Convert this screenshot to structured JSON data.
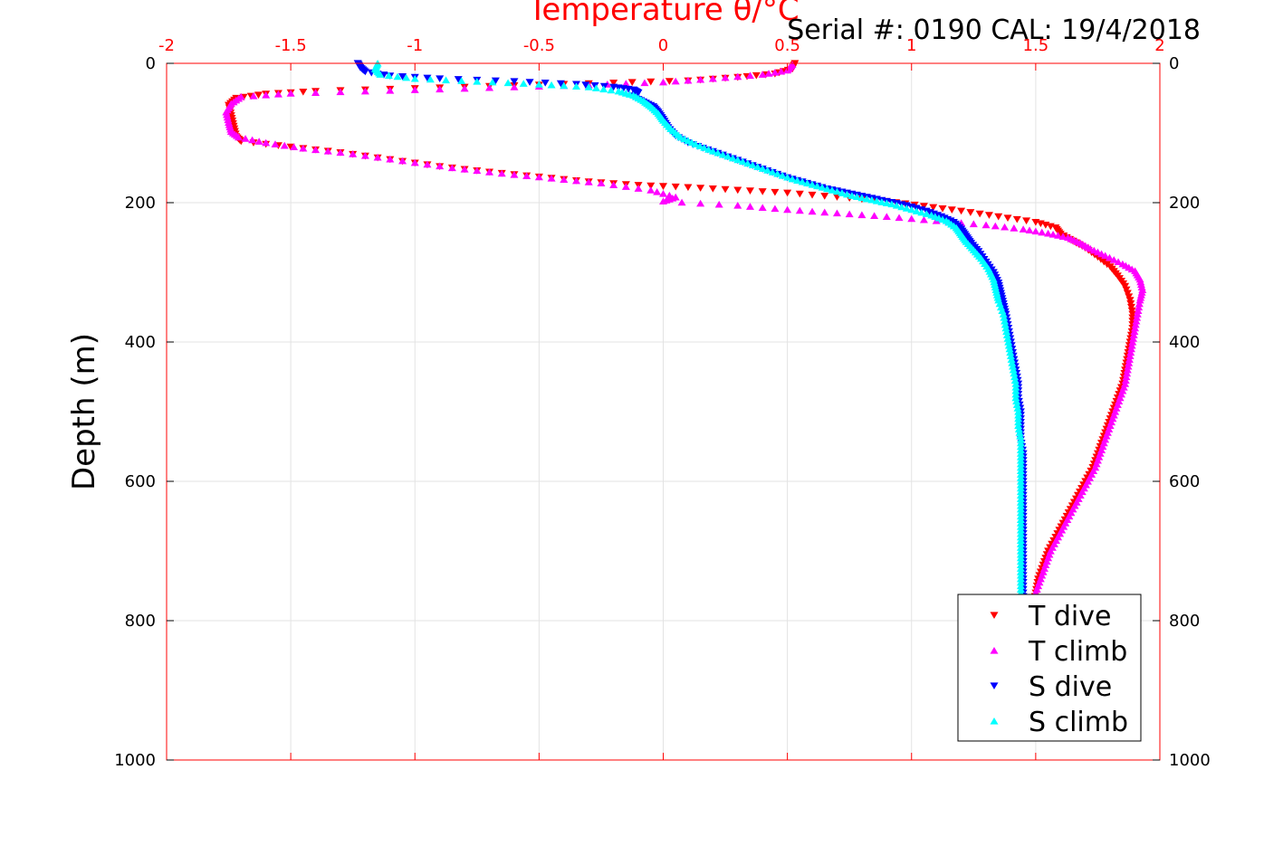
{
  "chart_data": {
    "type": "scatter",
    "title": "",
    "header_text": "Serial #: 0190  CAL: 19/4/2018",
    "xlabel": "Temperature θ/°C",
    "ylabel": "Depth (m)",
    "xlim": [
      -2,
      2
    ],
    "ylim": [
      0,
      1000
    ],
    "y_reversed": true,
    "x_axis_position": "top",
    "x_axis_color": "#ff0000",
    "x_ticks": [
      -2,
      -1.5,
      -1,
      -0.5,
      0,
      0.5,
      1,
      1.5,
      2
    ],
    "x_tick_labels": [
      "-2",
      "-1.5",
      "-1",
      "-0.5",
      "0",
      "0.5",
      "1",
      "1.5",
      "2"
    ],
    "y_ticks": [
      0,
      200,
      400,
      600,
      800,
      1000
    ],
    "y_tick_labels": [
      "0",
      "200",
      "400",
      "600",
      "800",
      "1000"
    ],
    "grid": true,
    "legend_position": "bottom-right",
    "series": [
      {
        "name": "T dive",
        "color": "#ff0000",
        "marker": "triangle-down",
        "points": [
          [
            0.53,
            0
          ],
          [
            0.52,
            8
          ],
          [
            0.45,
            15
          ],
          [
            0.3,
            20
          ],
          [
            0.1,
            25
          ],
          [
            -0.2,
            28
          ],
          [
            -0.6,
            32
          ],
          [
            -1.0,
            36
          ],
          [
            -1.4,
            40
          ],
          [
            -1.6,
            44
          ],
          [
            -1.72,
            50
          ],
          [
            -1.75,
            60
          ],
          [
            -1.74,
            75
          ],
          [
            -1.73,
            90
          ],
          [
            -1.72,
            105
          ],
          [
            -1.7,
            112
          ],
          [
            -1.5,
            120
          ],
          [
            -1.3,
            128
          ],
          [
            -1.1,
            138
          ],
          [
            -0.9,
            148
          ],
          [
            -0.7,
            156
          ],
          [
            -0.5,
            163
          ],
          [
            -0.3,
            170
          ],
          [
            -0.1,
            175
          ],
          [
            0.1,
            178
          ],
          [
            0.3,
            182
          ],
          [
            0.5,
            186
          ],
          [
            0.7,
            192
          ],
          [
            0.9,
            198
          ],
          [
            1.05,
            205
          ],
          [
            1.2,
            212
          ],
          [
            1.35,
            220
          ],
          [
            1.5,
            228
          ],
          [
            1.58,
            236
          ],
          [
            1.6,
            245
          ],
          [
            1.65,
            255
          ],
          [
            1.7,
            265
          ],
          [
            1.75,
            278
          ],
          [
            1.8,
            292
          ],
          [
            1.83,
            305
          ],
          [
            1.86,
            320
          ],
          [
            1.88,
            340
          ],
          [
            1.89,
            360
          ],
          [
            1.89,
            380
          ],
          [
            1.88,
            400
          ],
          [
            1.87,
            420
          ],
          [
            1.86,
            440
          ],
          [
            1.85,
            460
          ],
          [
            1.83,
            480
          ],
          [
            1.81,
            500
          ],
          [
            1.79,
            520
          ],
          [
            1.77,
            540
          ],
          [
            1.75,
            560
          ],
          [
            1.73,
            580
          ],
          [
            1.7,
            600
          ],
          [
            1.67,
            620
          ],
          [
            1.64,
            640
          ],
          [
            1.61,
            660
          ],
          [
            1.58,
            680
          ],
          [
            1.55,
            700
          ],
          [
            1.53,
            720
          ],
          [
            1.51,
            740
          ],
          [
            1.5,
            760
          ],
          [
            1.49,
            780
          ]
        ]
      },
      {
        "name": "T climb",
        "color": "#ff00ff",
        "marker": "triangle-up",
        "points": [
          [
            0.52,
            2
          ],
          [
            0.5,
            10
          ],
          [
            0.4,
            16
          ],
          [
            0.2,
            22
          ],
          [
            0.0,
            27
          ],
          [
            -0.3,
            31
          ],
          [
            -0.7,
            35
          ],
          [
            -1.1,
            39
          ],
          [
            -1.5,
            43
          ],
          [
            -1.7,
            48
          ],
          [
            -1.74,
            58
          ],
          [
            -1.76,
            70
          ],
          [
            -1.75,
            85
          ],
          [
            -1.74,
            98
          ],
          [
            -1.71,
            106
          ],
          [
            -1.6,
            114
          ],
          [
            -1.45,
            122
          ],
          [
            -1.25,
            130
          ],
          [
            -1.05,
            140
          ],
          [
            -0.85,
            150
          ],
          [
            -0.65,
            158
          ],
          [
            -0.45,
            165
          ],
          [
            -0.25,
            172
          ],
          [
            -0.05,
            182
          ],
          [
            0.05,
            192
          ],
          [
            0.0,
            198
          ],
          [
            0.3,
            204
          ],
          [
            0.5,
            210
          ],
          [
            0.7,
            215
          ],
          [
            0.9,
            220
          ],
          [
            1.1,
            226
          ],
          [
            1.3,
            232
          ],
          [
            1.45,
            238
          ],
          [
            1.55,
            244
          ],
          [
            1.63,
            250
          ],
          [
            1.68,
            258
          ],
          [
            1.72,
            266
          ],
          [
            1.78,
            276
          ],
          [
            1.85,
            288
          ],
          [
            1.9,
            298
          ],
          [
            1.92,
            310
          ],
          [
            1.93,
            325
          ],
          [
            1.92,
            340
          ],
          [
            1.91,
            360
          ],
          [
            1.9,
            380
          ],
          [
            1.89,
            400
          ],
          [
            1.88,
            420
          ],
          [
            1.87,
            440
          ],
          [
            1.86,
            460
          ],
          [
            1.84,
            480
          ],
          [
            1.82,
            500
          ],
          [
            1.8,
            520
          ],
          [
            1.78,
            540
          ],
          [
            1.76,
            560
          ],
          [
            1.74,
            580
          ],
          [
            1.71,
            600
          ],
          [
            1.68,
            620
          ],
          [
            1.65,
            640
          ],
          [
            1.62,
            660
          ],
          [
            1.59,
            680
          ],
          [
            1.56,
            700
          ],
          [
            1.54,
            720
          ],
          [
            1.52,
            740
          ],
          [
            1.5,
            760
          ],
          [
            1.5,
            780
          ]
        ]
      },
      {
        "name": "S dive",
        "color": "#0000ff",
        "marker": "triangle-down",
        "points": [
          [
            -1.23,
            0
          ],
          [
            -1.22,
            6
          ],
          [
            -1.2,
            12
          ],
          [
            -1.1,
            18
          ],
          [
            -0.9,
            22
          ],
          [
            -0.6,
            26
          ],
          [
            -0.35,
            30
          ],
          [
            -0.2,
            34
          ],
          [
            -0.12,
            38
          ],
          [
            -0.1,
            42
          ],
          [
            -0.12,
            48
          ],
          [
            -0.08,
            55
          ],
          [
            -0.04,
            62
          ],
          [
            -0.02,
            70
          ],
          [
            0.0,
            80
          ],
          [
            0.02,
            92
          ],
          [
            0.05,
            104
          ],
          [
            0.1,
            114
          ],
          [
            0.18,
            124
          ],
          [
            0.26,
            134
          ],
          [
            0.34,
            144
          ],
          [
            0.42,
            154
          ],
          [
            0.5,
            164
          ],
          [
            0.58,
            172
          ],
          [
            0.66,
            180
          ],
          [
            0.74,
            186
          ],
          [
            0.82,
            192
          ],
          [
            0.9,
            198
          ],
          [
            0.98,
            204
          ],
          [
            1.06,
            212
          ],
          [
            1.12,
            220
          ],
          [
            1.17,
            228
          ],
          [
            1.2,
            238
          ],
          [
            1.22,
            248
          ],
          [
            1.24,
            258
          ],
          [
            1.27,
            270
          ],
          [
            1.3,
            285
          ],
          [
            1.33,
            300
          ],
          [
            1.35,
            315
          ],
          [
            1.36,
            330
          ],
          [
            1.37,
            345
          ],
          [
            1.38,
            360
          ],
          [
            1.39,
            380
          ],
          [
            1.4,
            400
          ],
          [
            1.41,
            420
          ],
          [
            1.42,
            440
          ],
          [
            1.43,
            460
          ],
          [
            1.43,
            480
          ],
          [
            1.44,
            500
          ],
          [
            1.44,
            520
          ],
          [
            1.44,
            540
          ],
          [
            1.45,
            560
          ],
          [
            1.45,
            580
          ],
          [
            1.45,
            600
          ],
          [
            1.45,
            620
          ],
          [
            1.45,
            640
          ],
          [
            1.45,
            660
          ],
          [
            1.45,
            680
          ],
          [
            1.45,
            700
          ],
          [
            1.45,
            720
          ],
          [
            1.45,
            740
          ],
          [
            1.45,
            760
          ],
          [
            1.45,
            780
          ]
        ]
      },
      {
        "name": "S climb",
        "color": "#00ffff",
        "marker": "triangle-up",
        "points": [
          [
            -1.15,
            0
          ],
          [
            -1.16,
            8
          ],
          [
            -1.14,
            16
          ],
          [
            -1.0,
            22
          ],
          [
            -0.75,
            26
          ],
          [
            -0.5,
            30
          ],
          [
            -0.3,
            34
          ],
          [
            -0.18,
            40
          ],
          [
            -0.12,
            46
          ],
          [
            -0.08,
            54
          ],
          [
            -0.05,
            62
          ],
          [
            -0.02,
            72
          ],
          [
            0.0,
            82
          ],
          [
            0.03,
            94
          ],
          [
            0.07,
            106
          ],
          [
            0.13,
            116
          ],
          [
            0.2,
            126
          ],
          [
            0.28,
            136
          ],
          [
            0.36,
            146
          ],
          [
            0.44,
            156
          ],
          [
            0.52,
            166
          ],
          [
            0.6,
            174
          ],
          [
            0.68,
            182
          ],
          [
            0.76,
            190
          ],
          [
            0.84,
            196
          ],
          [
            0.92,
            202
          ],
          [
            1.0,
            210
          ],
          [
            1.08,
            218
          ],
          [
            1.14,
            226
          ],
          [
            1.18,
            236
          ],
          [
            1.2,
            246
          ],
          [
            1.22,
            256
          ],
          [
            1.25,
            268
          ],
          [
            1.28,
            280
          ],
          [
            1.31,
            295
          ],
          [
            1.33,
            310
          ],
          [
            1.34,
            325
          ],
          [
            1.35,
            340
          ],
          [
            1.37,
            360
          ],
          [
            1.38,
            380
          ],
          [
            1.39,
            400
          ],
          [
            1.4,
            420
          ],
          [
            1.41,
            440
          ],
          [
            1.42,
            460
          ],
          [
            1.42,
            480
          ],
          [
            1.43,
            500
          ],
          [
            1.43,
            520
          ],
          [
            1.44,
            540
          ],
          [
            1.44,
            560
          ],
          [
            1.44,
            580
          ],
          [
            1.44,
            600
          ],
          [
            1.44,
            620
          ],
          [
            1.44,
            640
          ],
          [
            1.44,
            660
          ],
          [
            1.44,
            680
          ],
          [
            1.44,
            700
          ],
          [
            1.44,
            720
          ],
          [
            1.44,
            740
          ],
          [
            1.44,
            760
          ],
          [
            1.44,
            780
          ]
        ]
      }
    ]
  }
}
